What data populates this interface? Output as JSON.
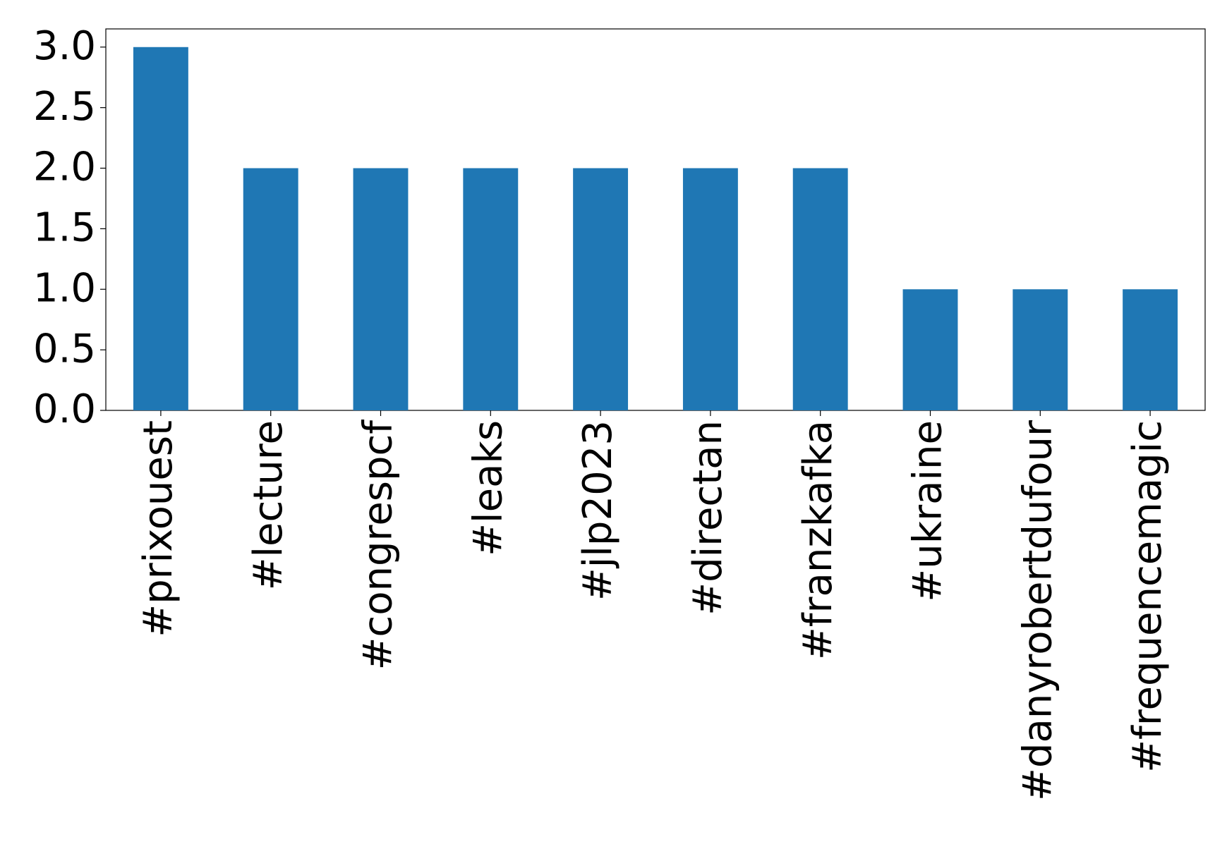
{
  "chart_data": {
    "type": "bar",
    "categories": [
      "#prixouest",
      "#lecture",
      "#congrespcf",
      "#leaks",
      "#jlp2023",
      "#directan",
      "#franzkafka",
      "#ukraine",
      "#danyrobertdufour",
      "#frequencemagic"
    ],
    "values": [
      3,
      2,
      2,
      2,
      2,
      2,
      2,
      1,
      1,
      1
    ],
    "color": "#1f77b4",
    "ylim": [
      0,
      3.15
    ],
    "yticks": [
      {
        "value": 0,
        "label": "0.0"
      },
      {
        "value": 0.5,
        "label": "0.5"
      },
      {
        "value": 1,
        "label": "1.0"
      },
      {
        "value": 1.5,
        "label": "1.5"
      },
      {
        "value": 2,
        "label": "2.0"
      },
      {
        "value": 2.5,
        "label": "2.5"
      },
      {
        "value": 3,
        "label": "3.0"
      }
    ],
    "grid": false
  }
}
